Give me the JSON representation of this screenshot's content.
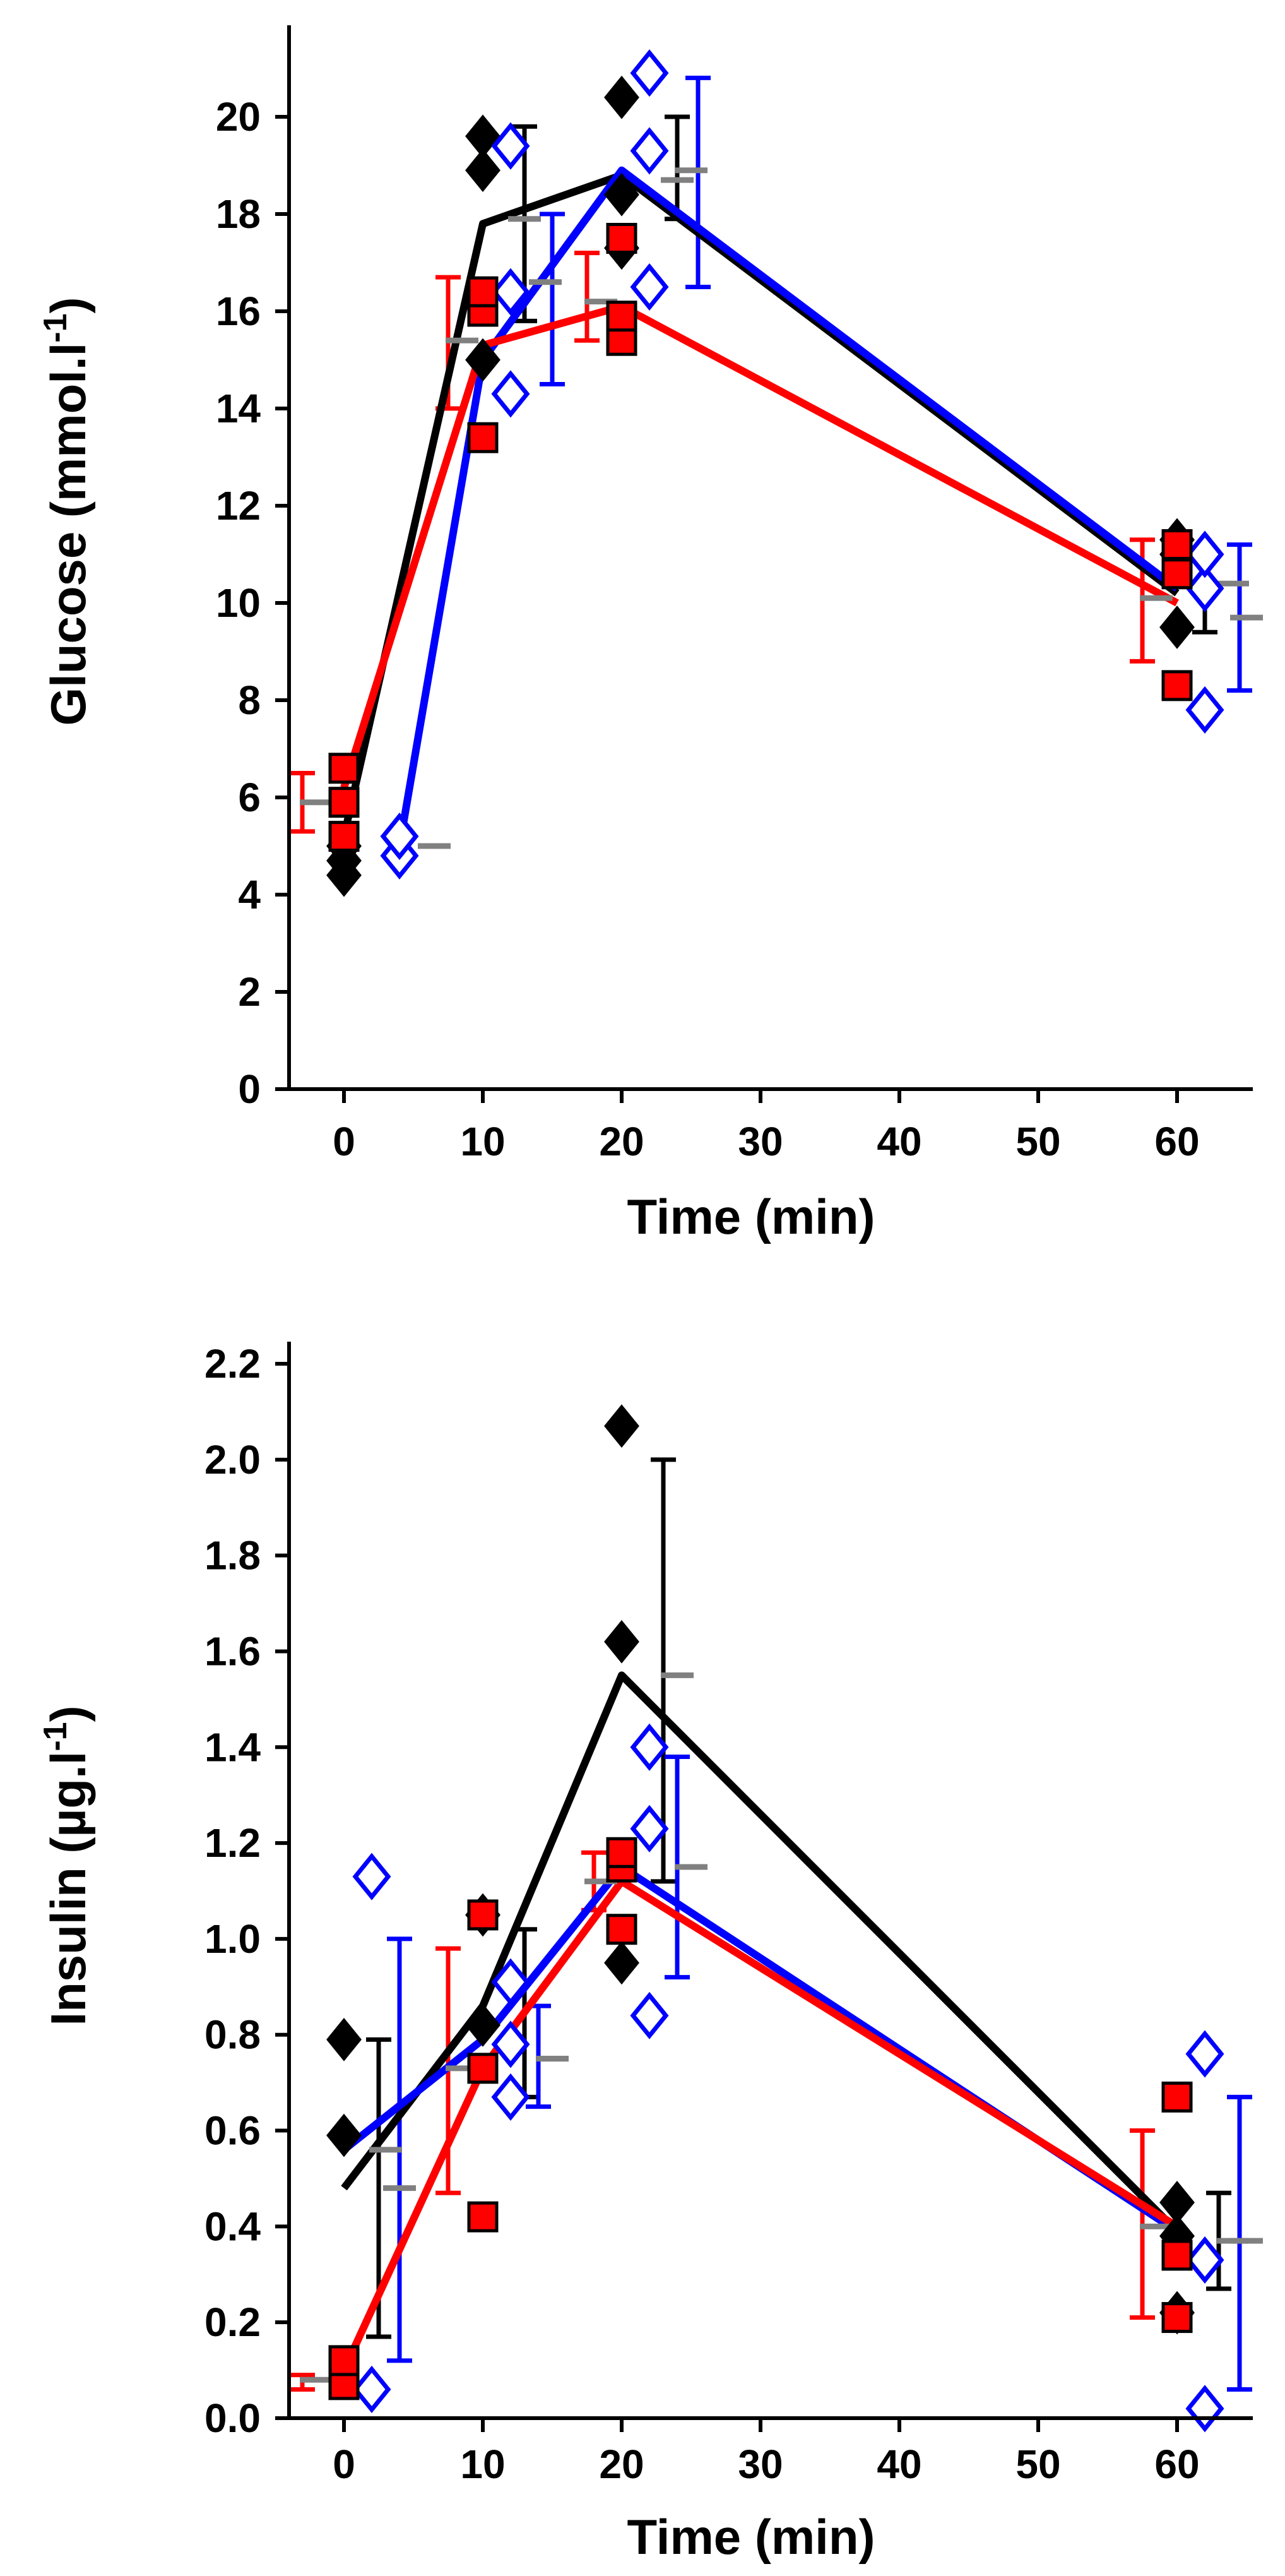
{
  "colors": {
    "series_a": "#000000",
    "series_b": "#0000ff",
    "series_c": "#ff0000",
    "mean_marker": "#808080"
  },
  "chart_data": [
    {
      "id": "glucose",
      "type": "scatter",
      "title": "",
      "xlabel": "Time (min)",
      "ylabel_main": "Glucose (mmol.l",
      "ylabel_sup": "-1",
      "ylabel_end": ")",
      "xlim": [
        -4,
        65
      ],
      "ylim": [
        0,
        22
      ],
      "xticks": [
        0,
        10,
        20,
        30,
        40,
        50,
        60
      ],
      "yticks": [
        0,
        2,
        4,
        6,
        8,
        10,
        12,
        14,
        16,
        18,
        20
      ],
      "ytick_decimals": 0,
      "series": [
        {
          "name": "black",
          "color_key": "series_a",
          "marker": "diamond-filled",
          "line": [
            [
              0,
              5.2
            ],
            [
              10,
              17.8
            ],
            [
              20,
              18.8
            ],
            [
              60,
              10.2
            ]
          ],
          "points": [
            [
              0,
              4.4
            ],
            [
              0,
              4.7
            ],
            [
              0,
              5.0
            ],
            [
              10,
              15.0
            ],
            [
              10,
              18.9
            ],
            [
              10,
              19.6
            ],
            [
              20,
              17.3
            ],
            [
              20,
              18.4
            ],
            [
              20,
              20.4
            ],
            [
              60,
              9.5
            ],
            [
              60,
              11.0
            ],
            [
              60,
              11.3
            ]
          ],
          "error_bars": [
            [
              13,
              15.8,
              19.8
            ],
            [
              24,
              17.9,
              20.0
            ],
            [
              62,
              9.4,
              11.0
            ]
          ],
          "means": [
            [
              13,
              17.9
            ],
            [
              24,
              18.7
            ],
            [
              64,
              10.4
            ]
          ]
        },
        {
          "name": "blue",
          "color_key": "series_b",
          "marker": "diamond-open",
          "line": [
            [
              4,
              5.0
            ],
            [
              10,
              15.0
            ],
            [
              20,
              18.9
            ],
            [
              60,
              10.3
            ]
          ],
          "points": [
            [
              4,
              4.8
            ],
            [
              4,
              5.2
            ],
            [
              12,
              14.3
            ],
            [
              12,
              16.4
            ],
            [
              12,
              19.4
            ],
            [
              22,
              16.5
            ],
            [
              22,
              19.3
            ],
            [
              22,
              20.9
            ],
            [
              62,
              7.8
            ],
            [
              62,
              10.3
            ],
            [
              62,
              11.0
            ]
          ],
          "error_bars": [
            [
              15,
              14.5,
              18.0
            ],
            [
              25.5,
              16.5,
              20.8
            ],
            [
              64.5,
              8.2,
              11.2
            ]
          ],
          "means": [
            [
              6.5,
              5.0
            ],
            [
              14.5,
              16.6
            ],
            [
              25,
              18.9
            ],
            [
              65,
              9.7
            ]
          ]
        },
        {
          "name": "red",
          "color_key": "series_c",
          "marker": "square-filled",
          "line": [
            [
              0,
              6.2
            ],
            [
              10,
              15.3
            ],
            [
              20,
              16.1
            ],
            [
              60,
              10.0
            ]
          ],
          "points": [
            [
              0,
              5.2
            ],
            [
              0,
              5.9
            ],
            [
              0,
              6.6
            ],
            [
              10,
              13.4
            ],
            [
              10,
              16.0
            ],
            [
              10,
              16.4
            ],
            [
              20,
              15.4
            ],
            [
              20,
              15.9
            ],
            [
              20,
              17.5
            ],
            [
              60,
              8.3
            ],
            [
              60,
              10.6
            ],
            [
              60,
              11.2
            ]
          ],
          "error_bars": [
            [
              -3,
              5.3,
              6.5
            ],
            [
              7.5,
              14.0,
              16.7
            ],
            [
              17.5,
              15.4,
              17.2
            ],
            [
              57.5,
              8.8,
              11.3
            ]
          ],
          "means": [
            [
              -2,
              5.9
            ],
            [
              8.5,
              15.4
            ],
            [
              18.5,
              16.2
            ],
            [
              58.5,
              10.1
            ]
          ]
        }
      ]
    },
    {
      "id": "insulin",
      "type": "scatter",
      "title": "",
      "xlabel": "Time (min)",
      "ylabel_main": "Insulin (µg.l",
      "ylabel_sup": "-1",
      "ylabel_end": ")",
      "xlim": [
        -4,
        65
      ],
      "ylim": [
        0,
        2.2
      ],
      "xticks": [
        0,
        10,
        20,
        30,
        40,
        50,
        60
      ],
      "yticks": [
        0,
        0.2,
        0.4,
        0.6,
        0.8,
        1.0,
        1.2,
        1.4,
        1.6,
        1.8,
        2.0,
        2.2
      ],
      "ytick_decimals": 1,
      "series": [
        {
          "name": "black",
          "color_key": "series_a",
          "marker": "diamond-filled",
          "line": [
            [
              0,
              0.48
            ],
            [
              10,
              0.86
            ],
            [
              20,
              1.55
            ],
            [
              60,
              0.39
            ]
          ],
          "points": [
            [
              0,
              0.59
            ],
            [
              0,
              0.79
            ],
            [
              10,
              0.82
            ],
            [
              10,
              1.05
            ],
            [
              20,
              0.95
            ],
            [
              20,
              1.62
            ],
            [
              20,
              2.07
            ],
            [
              60,
              0.22
            ],
            [
              60,
              0.38
            ],
            [
              60,
              0.45
            ]
          ],
          "error_bars": [
            [
              2.5,
              0.17,
              0.79
            ],
            [
              13,
              0.67,
              1.02
            ],
            [
              23,
              1.12,
              2.0
            ],
            [
              63,
              0.27,
              0.47
            ]
          ],
          "means": [
            [
              4,
              0.48
            ],
            [
              15,
              0.75
            ],
            [
              24,
              1.55
            ],
            [
              64,
              0.37
            ]
          ]
        },
        {
          "name": "blue",
          "color_key": "series_b",
          "marker": "diamond-open",
          "line": [
            [
              0,
              0.56
            ],
            [
              10,
              0.79
            ],
            [
              20,
              1.15
            ],
            [
              60,
              0.39
            ]
          ],
          "points": [
            [
              2,
              0.06
            ],
            [
              2,
              1.13
            ],
            [
              12,
              0.67
            ],
            [
              12,
              0.78
            ],
            [
              12,
              0.91
            ],
            [
              22,
              0.84
            ],
            [
              22,
              1.23
            ],
            [
              22,
              1.4
            ],
            [
              62,
              0.02
            ],
            [
              62,
              0.33
            ],
            [
              62,
              0.76
            ]
          ],
          "error_bars": [
            [
              4,
              0.12,
              1.0
            ],
            [
              14,
              0.65,
              0.86
            ],
            [
              24,
              0.92,
              1.38
            ],
            [
              64.5,
              0.06,
              0.67
            ]
          ],
          "means": [
            [
              3,
              0.56
            ],
            [
              15,
              0.75
            ],
            [
              25,
              1.15
            ],
            [
              65,
              0.37
            ]
          ]
        },
        {
          "name": "red",
          "color_key": "series_c",
          "marker": "square-filled",
          "line": [
            [
              0,
              0.1
            ],
            [
              10,
              0.73
            ],
            [
              20,
              1.12
            ],
            [
              60,
              0.4
            ]
          ],
          "points": [
            [
              0,
              0.07
            ],
            [
              0,
              0.12
            ],
            [
              10,
              0.42
            ],
            [
              10,
              0.73
            ],
            [
              10,
              1.05
            ],
            [
              20,
              1.02
            ],
            [
              20,
              1.15
            ],
            [
              20,
              1.18
            ],
            [
              60,
              0.21
            ],
            [
              60,
              0.34
            ],
            [
              60,
              0.67
            ]
          ],
          "error_bars": [
            [
              -3,
              0.06,
              0.09
            ],
            [
              7.5,
              0.47,
              0.98
            ],
            [
              18,
              1.06,
              1.18
            ],
            [
              57.5,
              0.21,
              0.6
            ]
          ],
          "means": [
            [
              -2,
              0.08
            ],
            [
              8.5,
              0.73
            ],
            [
              18.5,
              1.12
            ],
            [
              58.5,
              0.4
            ]
          ]
        }
      ]
    }
  ]
}
